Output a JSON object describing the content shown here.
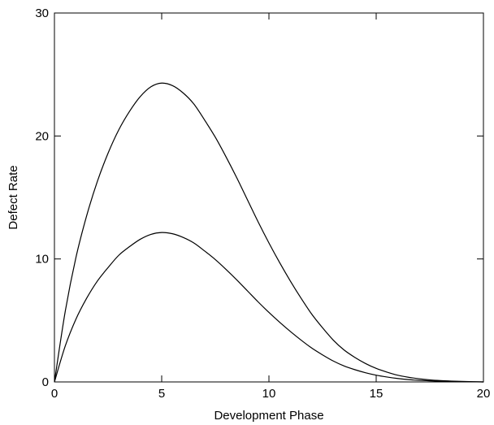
{
  "chart_data": {
    "type": "line",
    "title": "",
    "xlabel": "Development Phase",
    "ylabel": "Defect Rate",
    "xlim": [
      0,
      20
    ],
    "ylim": [
      0,
      30
    ],
    "x_ticks": [
      "0",
      "5",
      "10",
      "15",
      "20"
    ],
    "y_ticks": [
      "0",
      "10",
      "20",
      "30"
    ],
    "grid": false,
    "legend": "none",
    "series": [
      {
        "x": [
          0,
          0.5,
          1,
          1.5,
          2,
          2.5,
          3,
          3.5,
          4,
          4.5,
          5,
          5.5,
          6,
          6.5,
          7,
          7.5,
          8,
          8.5,
          9,
          9.5,
          10,
          10.5,
          11,
          11.5,
          12,
          12.5,
          13,
          13.5,
          14,
          14.5,
          15,
          15.5,
          16,
          16.5,
          17,
          17.5,
          18,
          18.5,
          19,
          19.5,
          20
        ],
        "y": [
          0,
          5.7,
          10.1,
          13.5,
          16.3,
          18.6,
          20.5,
          22.0,
          23.2,
          24.0,
          24.3,
          24.1,
          23.5,
          22.6,
          21.3,
          19.9,
          18.3,
          16.6,
          14.8,
          13.0,
          11.3,
          9.7,
          8.2,
          6.8,
          5.5,
          4.4,
          3.4,
          2.6,
          2.0,
          1.5,
          1.1,
          0.8,
          0.55,
          0.38,
          0.26,
          0.17,
          0.11,
          0.07,
          0.04,
          0.02,
          0
        ]
      },
      {
        "x": [
          0,
          0.5,
          1,
          1.5,
          2,
          2.5,
          3,
          3.5,
          4,
          4.5,
          5,
          5.5,
          6,
          6.5,
          7,
          7.5,
          8,
          8.5,
          9,
          9.5,
          10,
          10.5,
          11,
          11.5,
          12,
          12.5,
          13,
          13.5,
          14,
          14.5,
          15,
          15.5,
          16,
          16.5,
          17,
          17.5,
          18,
          18.5,
          19,
          19.5,
          20
        ],
        "y": [
          0,
          2.9,
          5.1,
          6.8,
          8.2,
          9.3,
          10.3,
          11.0,
          11.6,
          12.0,
          12.15,
          12.05,
          11.75,
          11.3,
          10.65,
          9.95,
          9.15,
          8.3,
          7.4,
          6.5,
          5.65,
          4.85,
          4.1,
          3.4,
          2.75,
          2.2,
          1.7,
          1.3,
          1.0,
          0.75,
          0.55,
          0.4,
          0.28,
          0.19,
          0.13,
          0.09,
          0.06,
          0.04,
          0.02,
          0.01,
          0
        ]
      }
    ]
  }
}
